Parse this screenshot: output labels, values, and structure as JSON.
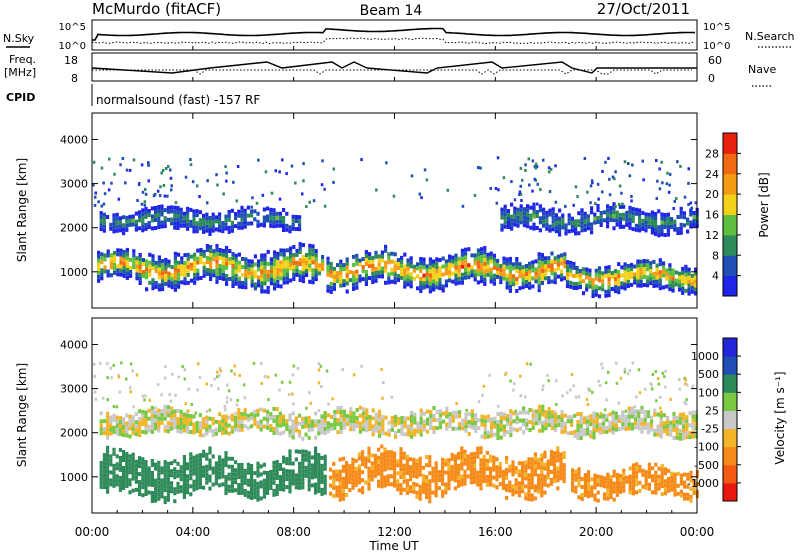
{
  "header": {
    "station": "McMurdo (fitACF)",
    "beam": "Beam 14",
    "date": "27/Oct/2011"
  },
  "strip_labels": {
    "nsky": "N.Sky",
    "nsearch": "N.Search",
    "freq": "Freq.",
    "freq_unit": "[MHz]",
    "nave": "Nave",
    "cpid": "CPID",
    "cpid_text": "normalsound (fast) -157 RF"
  },
  "strip_ticks": {
    "noise_left": [
      "10^5",
      "10^0"
    ],
    "noise_right": [
      "10^5",
      "10^0"
    ],
    "freq_left": [
      "18",
      "8"
    ],
    "nave_right": [
      "60",
      "0"
    ]
  },
  "colors": {
    "power": [
      "#1f24e6",
      "#1f4fb5",
      "#2f8a5a",
      "#5fbf3f",
      "#f2d21b",
      "#f59b16",
      "#f06a12",
      "#e8200f"
    ],
    "velocity": [
      "#e8180f",
      "#f25a14",
      "#f58a18",
      "#f2b428",
      "#c8c8c8",
      "#79c943",
      "#2f8a5a",
      "#1f4fb5",
      "#2424d9"
    ]
  },
  "chart_data": [
    {
      "type": "heatmap",
      "title": "",
      "xlabel": "Time UT",
      "ylabel": "Slant Range [km]",
      "x_ticks": [
        "00:00",
        "04:00",
        "08:00",
        "12:00",
        "16:00",
        "20:00",
        "00:00"
      ],
      "y_ticks": [
        "1000",
        "2000",
        "3000",
        "4000"
      ],
      "x_range_hours": [
        0,
        24
      ],
      "y_range_km": [
        180,
        4600
      ],
      "colorbar": {
        "label": "Power [dB]",
        "ticks": [
          "28",
          "24",
          "20",
          "16",
          "12",
          "8",
          "4"
        ],
        "range": [
          0,
          32
        ]
      },
      "echo_bands": [
        {
          "from_h": 0.2,
          "to_h": 9.2,
          "center_km": 1050,
          "width_km": 380,
          "peak_db": 26
        },
        {
          "from_h": 9.3,
          "to_h": 18.8,
          "center_km": 1000,
          "width_km": 350,
          "peak_db": 28
        },
        {
          "from_h": 18.8,
          "to_h": 24,
          "center_km": 850,
          "width_km": 300,
          "peak_db": 26
        },
        {
          "from_h": 0.3,
          "to_h": 8.2,
          "center_km": 2150,
          "width_km": 220,
          "peak_db": 12
        },
        {
          "from_h": 16.2,
          "to_h": 24,
          "center_km": 2150,
          "width_km": 250,
          "peak_db": 12
        }
      ]
    },
    {
      "type": "heatmap",
      "title": "",
      "xlabel": "Time UT",
      "ylabel": "Slant Range [km]",
      "x_ticks": [
        "00:00",
        "04:00",
        "08:00",
        "12:00",
        "16:00",
        "20:00",
        "00:00"
      ],
      "y_ticks": [
        "1000",
        "2000",
        "3000",
        "4000"
      ],
      "x_range_hours": [
        0,
        24
      ],
      "y_range_km": [
        180,
        4600
      ],
      "colorbar": {
        "label": "Velocity [m s⁻¹]",
        "ticks": [
          "1000",
          "500",
          "100",
          "25",
          "-25",
          "-100",
          "-500",
          "-1000"
        ],
        "range": [
          -1000,
          1000
        ]
      },
      "echo_bands": [
        {
          "from_h": 0.3,
          "to_h": 9.2,
          "center_km": 1000,
          "width_km": 420,
          "velocity": 200
        },
        {
          "from_h": 9.4,
          "to_h": 18.7,
          "center_km": 1050,
          "width_km": 420,
          "velocity": -150
        },
        {
          "from_h": 19.0,
          "to_h": 24,
          "center_km": 850,
          "width_km": 300,
          "velocity": -150
        },
        {
          "from_h": 0.3,
          "to_h": 24,
          "center_km": 2200,
          "width_km": 250,
          "velocity": 0
        }
      ]
    }
  ]
}
